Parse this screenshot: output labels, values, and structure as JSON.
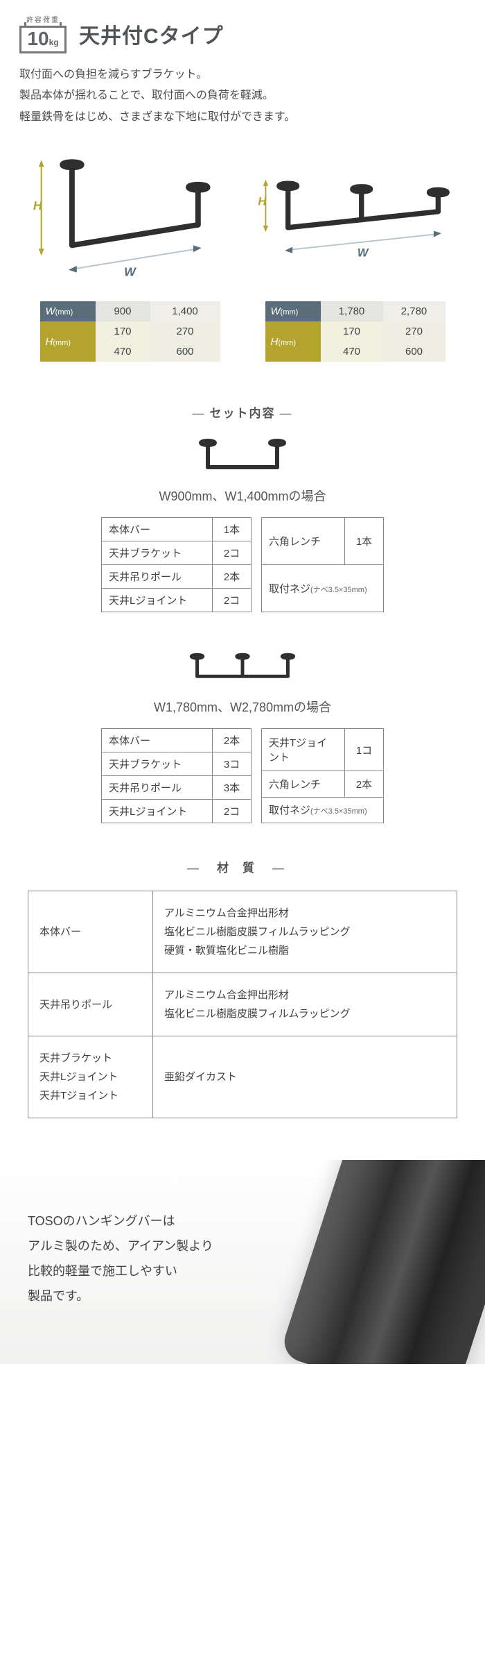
{
  "badge": {
    "top": "許容荷重",
    "num": "10",
    "unit": "kg"
  },
  "title": "天井付Cタイプ",
  "description": "取付面への負担を減らすブラケット。\n製品本体が揺れることで、取付面への負荷を軽減。\n軽量鉄骨をはじめ、さまざまな下地に取付ができます。",
  "diagrams": {
    "labels": {
      "H": "H",
      "W": "W"
    },
    "color_H": "#b3a42e",
    "color_W": "#5a6e79",
    "bar_color": "#2f2f2f",
    "dim_line_color": "#b6c5cc"
  },
  "sizes": {
    "left": {
      "W_header": "W",
      "H_header": "H",
      "unit": "(mm)",
      "W": [
        "900",
        "1,400"
      ],
      "H": [
        [
          "170",
          "270"
        ],
        [
          "470",
          "600"
        ]
      ]
    },
    "right": {
      "W_header": "W",
      "H_header": "H",
      "unit": "(mm)",
      "W": [
        "1,780",
        "2,780"
      ],
      "H": [
        [
          "170",
          "270"
        ],
        [
          "470",
          "600"
        ]
      ]
    }
  },
  "set_title": "セット内容",
  "case1": {
    "label": "W900mm、W1,400mmの場合",
    "left": [
      {
        "name": "本体バー",
        "qty": "1本"
      },
      {
        "name": "天井ブラケット",
        "qty": "2コ"
      },
      {
        "name": "天井吊りポール",
        "qty": "2本"
      },
      {
        "name": "天井Lジョイント",
        "qty": "2コ"
      }
    ],
    "right": [
      {
        "name": "六角レンチ",
        "qty": "1本"
      },
      {
        "name": "取付ネジ",
        "note": "(ナベ3.5×35mm)"
      }
    ]
  },
  "case2": {
    "label": "W1,780mm、W2,780mmの場合",
    "left": [
      {
        "name": "本体バー",
        "qty": "2本"
      },
      {
        "name": "天井ブラケット",
        "qty": "3コ"
      },
      {
        "name": "天井吊りポール",
        "qty": "3本"
      },
      {
        "name": "天井Lジョイント",
        "qty": "2コ"
      }
    ],
    "right": [
      {
        "name": "天井Tジョイント",
        "qty": "1コ"
      },
      {
        "name": "六角レンチ",
        "qty": "2本"
      },
      {
        "name": "取付ネジ",
        "note": "(ナベ3.5×35mm)"
      }
    ]
  },
  "material_title": "材質",
  "materials": [
    {
      "name": "本体バー",
      "desc": "アルミニウム合金押出形材\n塩化ビニル樹脂皮膜フィルムラッピング\n硬質・軟質塩化ビニル樹脂"
    },
    {
      "name": "天井吊りポール",
      "desc": "アルミニウム合金押出形材\n塩化ビニル樹脂皮膜フィルムラッピング"
    },
    {
      "name": "天井ブラケット\n天井Lジョイント\n天井Tジョイント",
      "desc": "亜鉛ダイカスト"
    }
  ],
  "footer": "TOSOのハンギングバーは\nアルミ製のため、アイアン製より\n比較的軽量で施工しやすい\n製品です。"
}
